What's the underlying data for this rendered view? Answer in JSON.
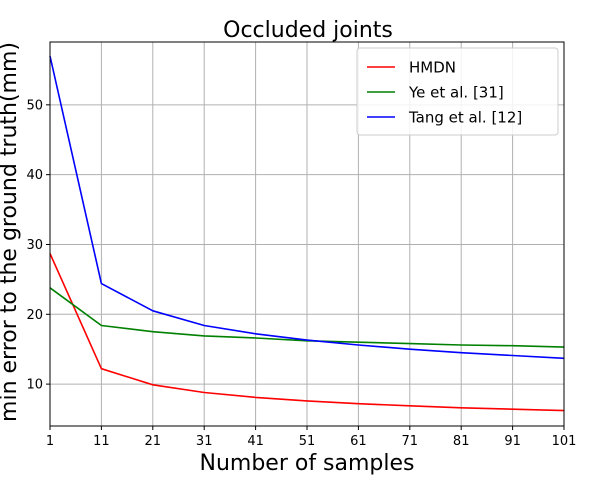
{
  "chart_data": {
    "type": "line",
    "title": "Occluded joints",
    "xlabel": "Number of samples",
    "ylabel": "min error to the ground truth(mm)",
    "x": [
      1,
      11,
      21,
      31,
      41,
      51,
      61,
      71,
      81,
      91,
      101
    ],
    "xticks": [
      "1",
      "11",
      "21",
      "31",
      "41",
      "51",
      "61",
      "71",
      "81",
      "91",
      "101"
    ],
    "yticks": [
      "10",
      "20",
      "30",
      "40",
      "50"
    ],
    "xlim": [
      1,
      101
    ],
    "ylim": [
      4,
      59
    ],
    "grid": true,
    "legend_position": "top-right",
    "series": [
      {
        "name": "HMDN",
        "color": "#ff0000",
        "values": [
          28.7,
          12.2,
          9.9,
          8.8,
          8.1,
          7.6,
          7.2,
          6.9,
          6.6,
          6.4,
          6.2
        ]
      },
      {
        "name": "Ye et al. [31]",
        "color": "#008000",
        "values": [
          23.8,
          18.4,
          17.5,
          16.9,
          16.6,
          16.2,
          16.0,
          15.8,
          15.6,
          15.5,
          15.3
        ]
      },
      {
        "name": "Tang et al. [12]",
        "color": "#0000ff",
        "values": [
          57.0,
          24.4,
          20.5,
          18.4,
          17.2,
          16.3,
          15.6,
          15.0,
          14.5,
          14.1,
          13.7
        ]
      }
    ]
  }
}
